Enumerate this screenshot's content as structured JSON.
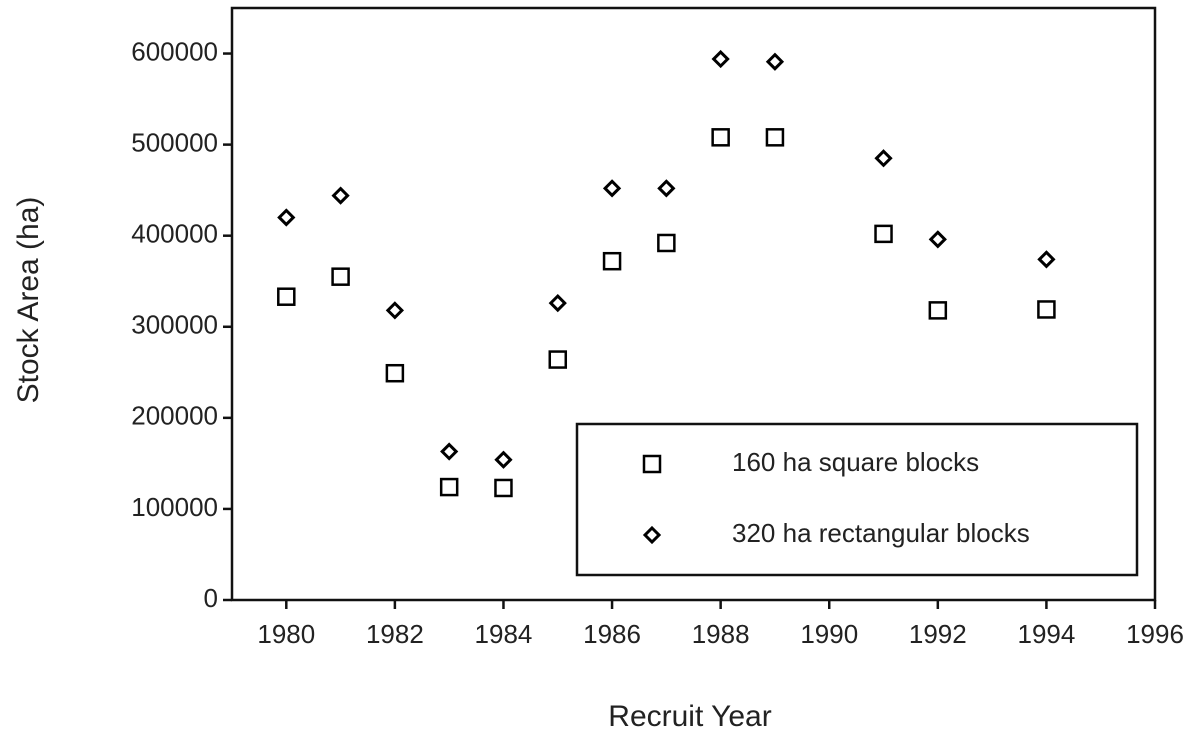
{
  "chart_data": {
    "type": "scatter",
    "x_label": "Recruit Year",
    "y_label": "Stock Area (ha)",
    "x": [
      1980,
      1981,
      1982,
      1983,
      1984,
      1985,
      1986,
      1987,
      1988,
      1989,
      1991,
      1992,
      1994
    ],
    "series": [
      {
        "name": "160 ha square blocks",
        "color": "#000000",
        "marker": "square",
        "values": [
          333000,
          355000,
          249000,
          124000,
          123000,
          264000,
          372000,
          392000,
          508000,
          508000,
          402000,
          318000,
          319000
        ]
      },
      {
        "name": "320 ha rectangular blocks",
        "color": "#000000",
        "marker": "diamond",
        "values": [
          420000,
          444000,
          318000,
          163000,
          154000,
          326000,
          452000,
          452000,
          594000,
          591000,
          485000,
          396000,
          374000
        ]
      }
    ],
    "xlim": [
      1979,
      1996
    ],
    "xticks": [
      1980,
      1982,
      1984,
      1986,
      1988,
      1990,
      1992,
      1994,
      1996
    ],
    "ylim": [
      0,
      650000
    ],
    "yticks": [
      0,
      100000,
      200000,
      300000,
      400000,
      500000,
      600000
    ],
    "grid": false,
    "legend": "lower right"
  }
}
